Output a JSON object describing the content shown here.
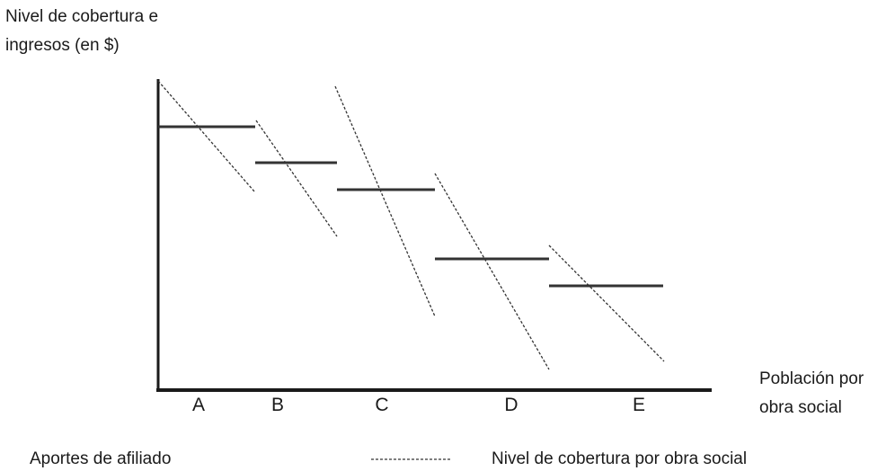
{
  "ylabel_lines": [
    "Nivel de cobertura e",
    "ingresos (en $)"
  ],
  "xlabel_lines": [
    "Población por",
    "obra social"
  ],
  "groups": [
    "A",
    "B",
    "C",
    "D",
    "E"
  ],
  "legend": {
    "aportes_label": "Aportes de afiliado",
    "cobertura_label": "Nivel de cobertura por obra social"
  },
  "colors": {
    "ink": "#1a1a1a",
    "line": "#333333",
    "background": "#ffffff"
  }
}
